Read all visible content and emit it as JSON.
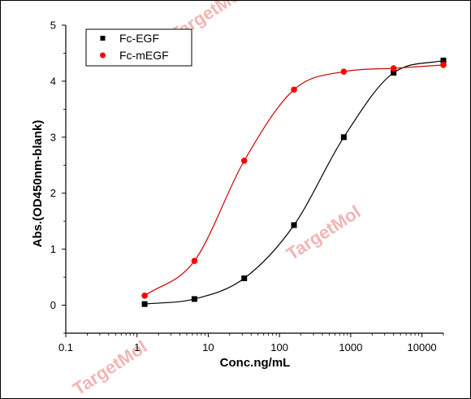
{
  "chart_data": {
    "type": "scatter",
    "xlabel": "Conc.ng/mL",
    "ylabel": "Abs.(OD450nm-blank)",
    "xscale": "log",
    "xlim": [
      0.1,
      20000
    ],
    "ylim": [
      -0.5,
      5
    ],
    "x_ticks": [
      "0.1",
      "1",
      "10",
      "100",
      "1000",
      "10000"
    ],
    "y_ticks": [
      "0",
      "1",
      "2",
      "3",
      "4",
      "5"
    ],
    "legend_position": "top-left",
    "series": [
      {
        "name": "Fc-EGF",
        "color": "#000000",
        "marker": "square",
        "curve_color": "#000000",
        "x": [
          1.28,
          6.4,
          32,
          160,
          800,
          4000,
          20000
        ],
        "y": [
          0.02,
          0.11,
          0.48,
          1.43,
          3.0,
          4.15,
          4.37
        ]
      },
      {
        "name": "Fc-mEGF",
        "color": "#ff0000",
        "marker": "circle",
        "curve_color": "#cc0000",
        "x": [
          1.28,
          6.4,
          32,
          160,
          800,
          4000,
          20000
        ],
        "y": [
          0.17,
          0.79,
          2.58,
          3.85,
          4.17,
          4.23,
          4.29
        ]
      }
    ]
  },
  "watermark": "TargetMol"
}
